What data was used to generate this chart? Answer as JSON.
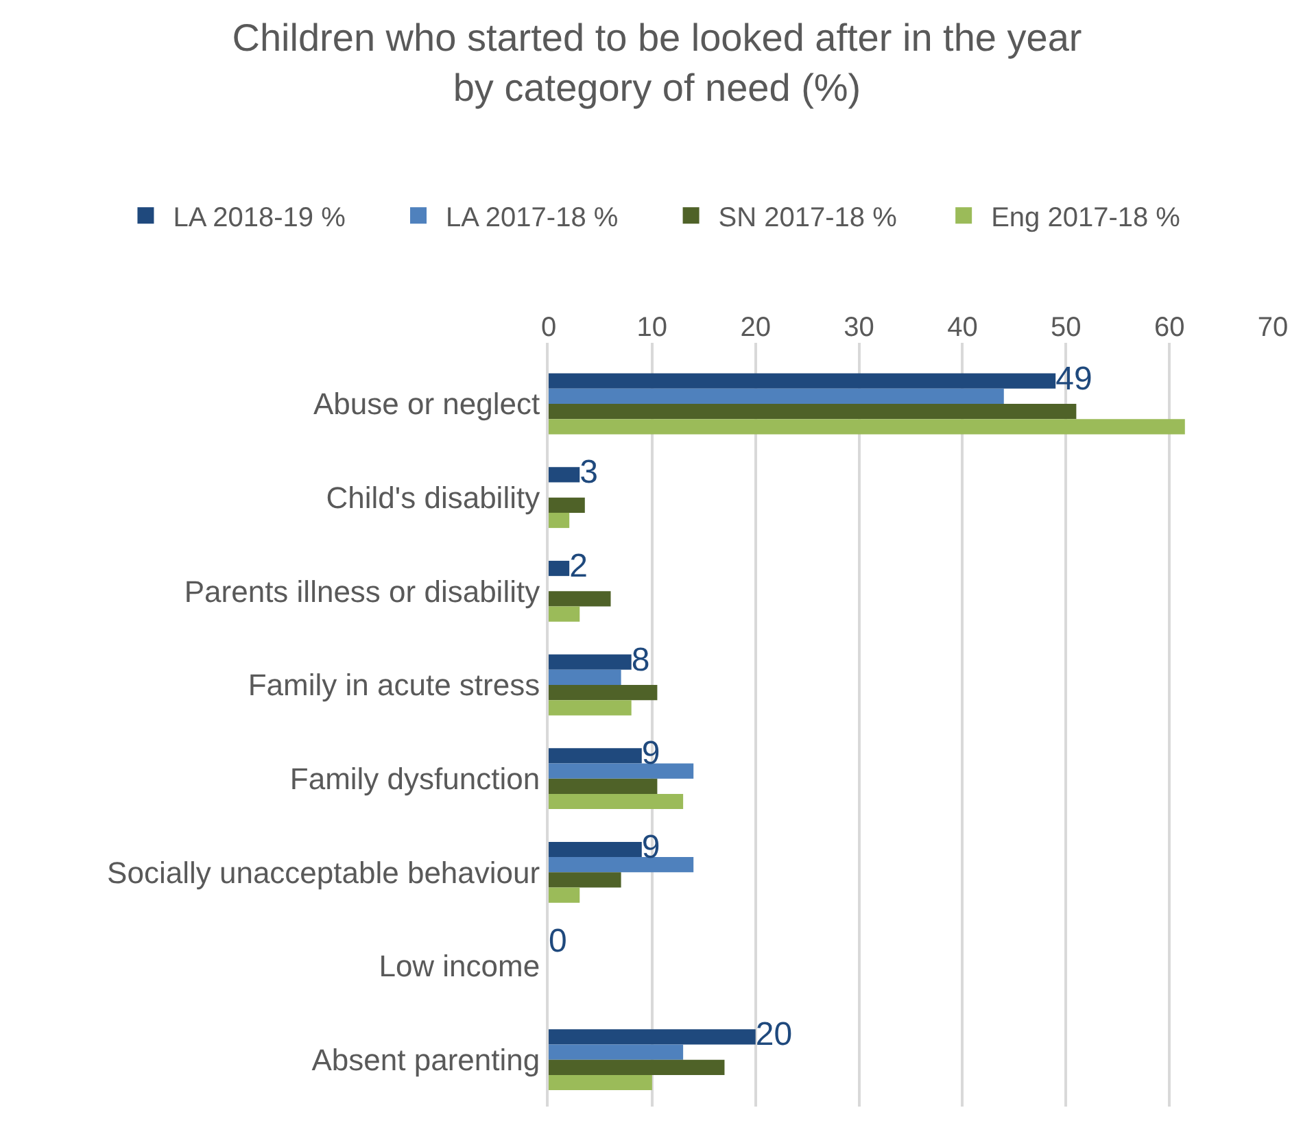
{
  "chart_data": {
    "type": "bar",
    "orientation": "horizontal",
    "title": "Children who started to be looked after in the year by category of need (%)",
    "categories": [
      "Abuse or neglect",
      "Child's disability",
      "Parents illness or disability",
      "Family in acute stress",
      "Family dysfunction",
      "Socially unacceptable behaviour",
      "Low income",
      "Absent parenting"
    ],
    "series": [
      {
        "name": "LA 2018-19 %",
        "color": "#1f497d",
        "values": [
          49,
          3,
          2,
          8,
          9,
          9,
          0,
          20
        ],
        "value_labels": [
          "49",
          "3",
          "2",
          "8",
          "9",
          "9",
          "0",
          "20"
        ]
      },
      {
        "name": "LA 2017-18 %",
        "color": "#4f81bd",
        "values": [
          44,
          0,
          0,
          7,
          14,
          14,
          0,
          13
        ]
      },
      {
        "name": "SN 2017-18 %",
        "color": "#4f6228",
        "values": [
          51,
          3.5,
          6,
          10.5,
          10.5,
          7,
          0,
          17
        ]
      },
      {
        "name": "Eng 2017-18 %",
        "color": "#9bbb59",
        "values": [
          61.5,
          2,
          3,
          8,
          13,
          3,
          0,
          10
        ]
      }
    ],
    "xlim": [
      0,
      70
    ],
    "xticks": [
      0,
      10,
      20,
      30,
      40,
      50,
      60,
      70
    ],
    "grid": "x",
    "legend": "top"
  }
}
